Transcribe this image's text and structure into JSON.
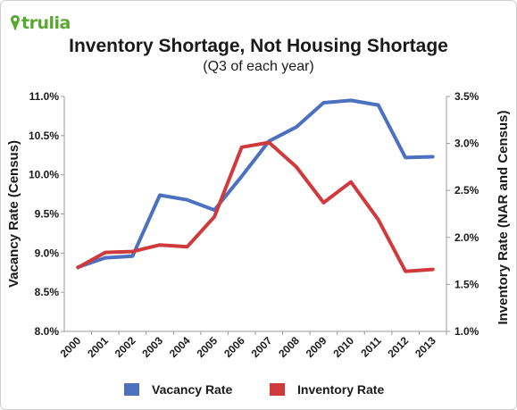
{
  "brand": {
    "name": "trulia",
    "color": "#5aa832",
    "icon": "map-pin-icon"
  },
  "chart_data": {
    "type": "line",
    "title": "Inventory Shortage, Not Housing Shortage",
    "subtitle": "(Q3 of each year)",
    "categories": [
      "2000",
      "2001",
      "2002",
      "2003",
      "2004",
      "2005",
      "2006",
      "2007",
      "2008",
      "2009",
      "2010",
      "2011",
      "2012",
      "2013"
    ],
    "series": [
      {
        "name": "Vacancy Rate",
        "axis": "left",
        "color": "#4b71c0",
        "values": [
          8.82,
          8.94,
          8.96,
          9.74,
          9.68,
          9.55,
          9.98,
          10.43,
          10.61,
          10.92,
          10.95,
          10.89,
          10.22,
          10.23
        ]
      },
      {
        "name": "Inventory Rate",
        "axis": "right",
        "color": "#d03a3c",
        "values": [
          1.68,
          1.84,
          1.85,
          1.92,
          1.9,
          2.22,
          2.96,
          3.01,
          2.75,
          2.37,
          2.59,
          2.19,
          1.64,
          1.66
        ]
      }
    ],
    "y_left": {
      "label": "Vacancy Rate (Census)",
      "ylim": [
        8.0,
        11.0
      ],
      "ticks": [
        8.0,
        8.5,
        9.0,
        9.5,
        10.0,
        10.5,
        11.0
      ],
      "tick_labels": [
        "8.0%",
        "8.5%",
        "9.0%",
        "9.5%",
        "10.0%",
        "10.5%",
        "11.0%"
      ]
    },
    "y_right": {
      "label": "Inventory Rate (NAR and Census)",
      "ylim": [
        1.0,
        3.5
      ],
      "ticks": [
        1.0,
        1.5,
        2.0,
        2.5,
        3.0,
        3.5
      ],
      "tick_labels": [
        "1.0%",
        "1.5%",
        "2.0%",
        "2.5%",
        "3.0%",
        "3.5%"
      ]
    },
    "grid": false,
    "legend_position": "bottom"
  }
}
